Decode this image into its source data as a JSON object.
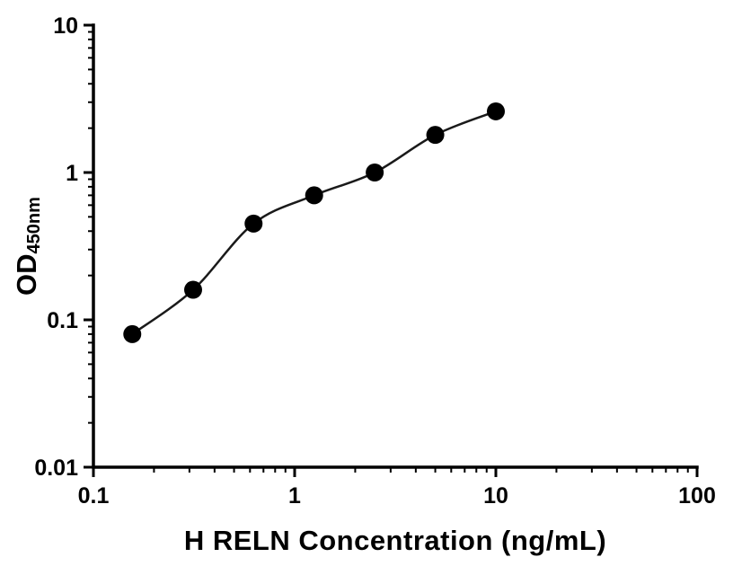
{
  "figure": {
    "background": "#ffffff"
  },
  "chart_data": {
    "type": "scatter",
    "title": "",
    "xlabel": "H RELN Concentration (ng/mL)",
    "ylabel": "OD450nm",
    "ylabel_main": "OD",
    "ylabel_sub": "450nm",
    "xscale": "log",
    "yscale": "log",
    "xlim": [
      0.1,
      100
    ],
    "ylim": [
      0.01,
      10
    ],
    "x_ticks": [
      0.1,
      1,
      10,
      100
    ],
    "x_tick_labels": [
      "0.1",
      "1",
      "10",
      "100"
    ],
    "y_ticks": [
      0.01,
      0.1,
      1,
      10
    ],
    "y_tick_labels": [
      "0.01",
      "0.1",
      "1",
      "10"
    ],
    "x": [
      0.156,
      0.313,
      0.625,
      1.25,
      2.5,
      5,
      10
    ],
    "y": [
      0.08,
      0.16,
      0.45,
      0.7,
      1.0,
      1.8,
      2.6
    ],
    "fit": "smooth standard-curve fit through points",
    "grid": false,
    "legend": false,
    "marker": {
      "shape": "circle",
      "radius": 10,
      "color": "#000000"
    },
    "line_color": "#1a1a1a",
    "axis_color": "#000000"
  }
}
